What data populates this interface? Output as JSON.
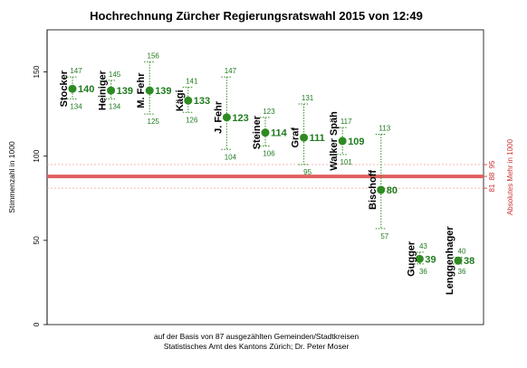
{
  "chart_data": {
    "type": "scatter",
    "title": "Hochrechnung Zürcher Regierungsratswahl 2015 von 12:49",
    "ylabel": "Stimmenzahl in 1000",
    "y2label": "Absolutes Mehr in 1000",
    "caption": [
      "auf der Basis von 87 ausgezählten Gemeinden/Stadtkreisen",
      "Statistisches Amt des Kantons Zürich; Dr. Peter Moser"
    ],
    "ylim": [
      0,
      175
    ],
    "yticks": [
      "0",
      "50",
      "100",
      "150"
    ],
    "y2ticks": [
      "81",
      "88",
      "95"
    ],
    "absolutes_mehr": {
      "estimate": 88,
      "lower": 81,
      "upper": 95
    },
    "candidates": [
      {
        "name": "Stocker",
        "value": 140,
        "value_label": "140",
        "lower": 134,
        "lower_label": "134",
        "upper": 147,
        "upper_label": "147"
      },
      {
        "name": "Heiniger",
        "value": 139,
        "value_label": "139",
        "lower": 134,
        "lower_label": "134",
        "upper": 145,
        "upper_label": "145"
      },
      {
        "name": "M. Fehr",
        "value": 139,
        "value_label": "139",
        "lower": 125,
        "lower_label": "125",
        "upper": 156,
        "upper_label": "156"
      },
      {
        "name": "Kägi",
        "value": 133,
        "value_label": "133",
        "lower": 126,
        "lower_label": "126",
        "upper": 141,
        "upper_label": "141"
      },
      {
        "name": "J. Fehr",
        "value": 123,
        "value_label": "123",
        "lower": 104,
        "lower_label": "104",
        "upper": 147,
        "upper_label": "147"
      },
      {
        "name": "Steiner",
        "value": 114,
        "value_label": "114",
        "lower": 106,
        "lower_label": "106",
        "upper": 123,
        "upper_label": "123"
      },
      {
        "name": "Graf",
        "value": 111,
        "value_label": "111",
        "lower": 95,
        "lower_label": "95",
        "upper": 131,
        "upper_label": "131"
      },
      {
        "name": "Walker Späh",
        "value": 109,
        "value_label": "109",
        "lower": 101,
        "lower_label": "101",
        "upper": 117,
        "upper_label": "117"
      },
      {
        "name": "Bischoff",
        "value": 80,
        "value_label": "80",
        "lower": 57,
        "lower_label": "57",
        "upper": 113,
        "upper_label": "113"
      },
      {
        "name": "Gugger",
        "value": 39,
        "value_label": "39",
        "lower": 36,
        "lower_label": "36",
        "upper": 43,
        "upper_label": "43"
      },
      {
        "name": "Lenggenhager",
        "value": 38,
        "value_label": "38",
        "lower": 36,
        "lower_label": "36",
        "upper": 40,
        "upper_label": "40"
      }
    ],
    "colors": {
      "point": "#2e8b22",
      "interval": "#2e8b22",
      "mehr_line": "#e06060",
      "mehr_band": "#f3a0a0",
      "right_axis": "#cc3333"
    }
  }
}
